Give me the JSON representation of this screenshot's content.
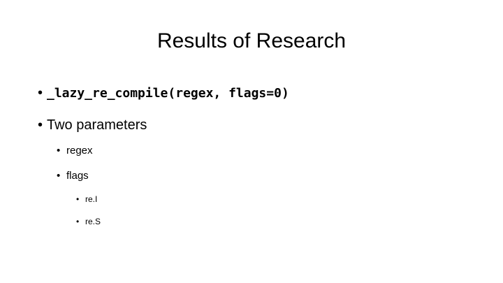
{
  "slide": {
    "title": "Results of Research",
    "bullet_glyph": "•",
    "bullets": [
      {
        "text": "_lazy_re_compile(regex, flags=0)",
        "level": 1,
        "style": "code-bold"
      },
      {
        "text": "Two parameters",
        "level": 1
      },
      {
        "text": "regex",
        "level": 2
      },
      {
        "text": "flags",
        "level": 2
      },
      {
        "text": "re.I",
        "level": 3
      },
      {
        "text": "re.S",
        "level": 3
      }
    ]
  }
}
